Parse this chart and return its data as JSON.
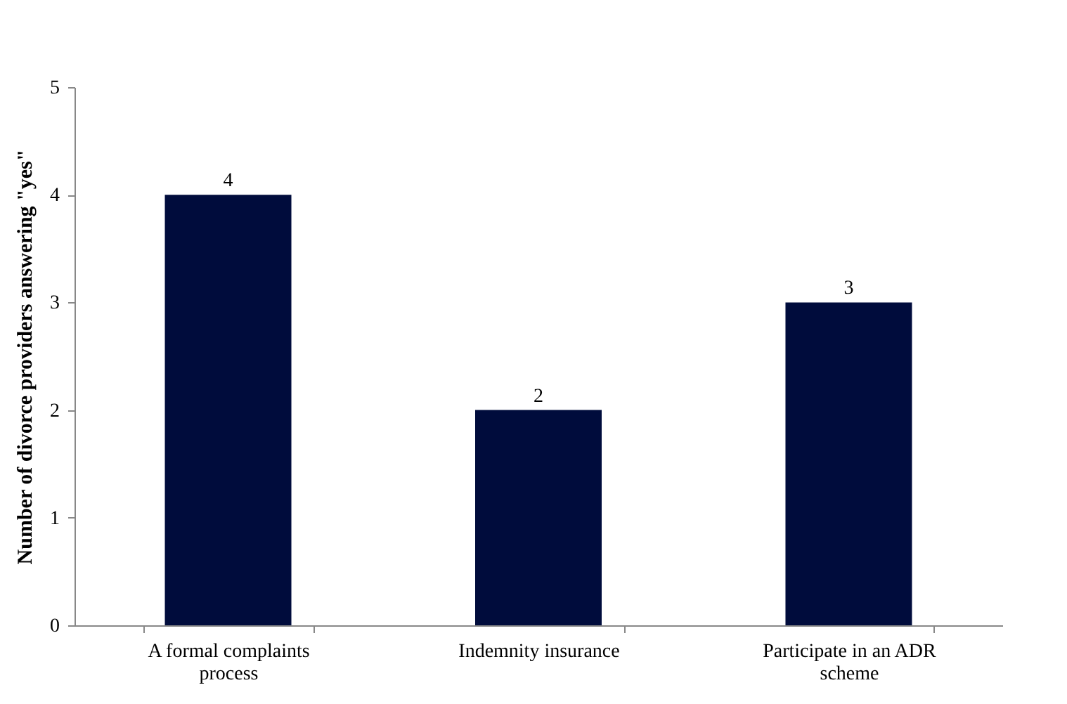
{
  "chart_data": {
    "type": "bar",
    "ylabel": "Number of divorce providers answering \"yes\"",
    "categories": [
      "A formal complaints process",
      "Indemnity insurance",
      "Participate in an ADR scheme"
    ],
    "values": [
      4,
      2,
      3
    ],
    "color": "#000c3c",
    "ylim": [
      0,
      5
    ],
    "yticks": [
      0,
      1,
      2,
      3,
      4,
      5
    ],
    "grid": false,
    "data_labels": true
  }
}
